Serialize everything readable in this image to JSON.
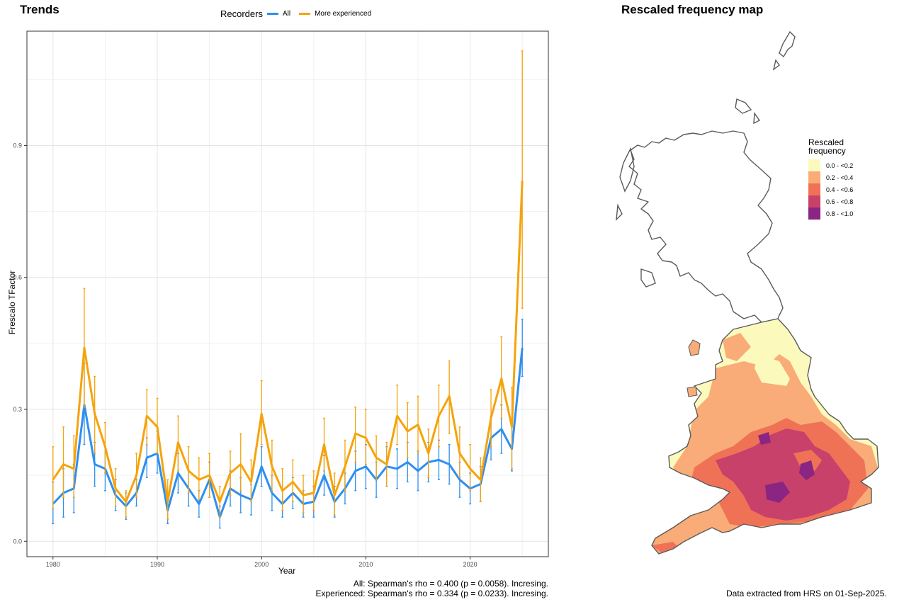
{
  "trends": {
    "title": "Trends",
    "legend_title": "Recorders",
    "ylabel": "Frescalo TFactor",
    "xlabel": "Year",
    "stat_all": "All: Spearman's rho = 0.400 (p = 0.0058). Incresing.",
    "stat_experienced": "Experienced: Spearman's rho = 0.334 (p = 0.0233). Incresing."
  },
  "chart_data": {
    "type": "line",
    "title": "Trends",
    "xlabel": "Year",
    "ylabel": "Frescalo TFactor",
    "xlim": [
      1977.5,
      2027.5
    ],
    "ylim": [
      -0.035,
      1.16
    ],
    "x_ticks": [
      1980,
      1990,
      2000,
      2010,
      2020
    ],
    "y_ticks": [
      0.0,
      0.3,
      0.6,
      0.9
    ],
    "y_tick_labels": [
      "0.0",
      "0.3",
      "0.6",
      "0.9"
    ],
    "grid": true,
    "legend_position": "top",
    "x": [
      1980,
      1981,
      1982,
      1983,
      1984,
      1985,
      1986,
      1987,
      1988,
      1989,
      1990,
      1991,
      1992,
      1993,
      1994,
      1995,
      1996,
      1997,
      1998,
      1999,
      2000,
      2001,
      2002,
      2003,
      2004,
      2005,
      2006,
      2007,
      2008,
      2009,
      2010,
      2011,
      2012,
      2013,
      2014,
      2015,
      2016,
      2017,
      2018,
      2019,
      2020,
      2021,
      2022,
      2023,
      2024,
      2025
    ],
    "series": [
      {
        "name": "All",
        "color": "#2d8ff0",
        "values": [
          0.085,
          0.11,
          0.12,
          0.31,
          0.175,
          0.165,
          0.105,
          0.08,
          0.11,
          0.19,
          0.2,
          0.07,
          0.155,
          0.12,
          0.085,
          0.14,
          0.055,
          0.12,
          0.105,
          0.095,
          0.17,
          0.11,
          0.085,
          0.11,
          0.085,
          0.09,
          0.15,
          0.09,
          0.12,
          0.16,
          0.17,
          0.14,
          0.17,
          0.165,
          0.18,
          0.16,
          0.18,
          0.185,
          0.175,
          0.14,
          0.12,
          0.13,
          0.235,
          0.255,
          0.21,
          0.44
        ],
        "lower": [
          0.04,
          0.055,
          0.065,
          0.22,
          0.125,
          0.115,
          0.07,
          0.05,
          0.08,
          0.145,
          0.155,
          0.04,
          0.11,
          0.08,
          0.055,
          0.1,
          0.03,
          0.08,
          0.065,
          0.06,
          0.125,
          0.07,
          0.055,
          0.075,
          0.055,
          0.055,
          0.105,
          0.055,
          0.085,
          0.115,
          0.12,
          0.1,
          0.125,
          0.12,
          0.135,
          0.115,
          0.135,
          0.14,
          0.13,
          0.1,
          0.085,
          0.09,
          0.185,
          0.2,
          0.16,
          0.375
        ],
        "upper": [
          0.135,
          0.165,
          0.175,
          0.405,
          0.225,
          0.215,
          0.14,
          0.11,
          0.14,
          0.235,
          0.25,
          0.1,
          0.2,
          0.16,
          0.115,
          0.18,
          0.08,
          0.16,
          0.145,
          0.13,
          0.215,
          0.15,
          0.115,
          0.145,
          0.115,
          0.125,
          0.195,
          0.125,
          0.155,
          0.205,
          0.22,
          0.18,
          0.215,
          0.21,
          0.225,
          0.205,
          0.225,
          0.23,
          0.22,
          0.18,
          0.155,
          0.17,
          0.285,
          0.31,
          0.26,
          0.505
        ]
      },
      {
        "name": "More experienced",
        "color": "#f5a30c",
        "values": [
          0.14,
          0.175,
          0.165,
          0.44,
          0.29,
          0.215,
          0.12,
          0.09,
          0.15,
          0.285,
          0.26,
          0.09,
          0.225,
          0.16,
          0.14,
          0.15,
          0.09,
          0.155,
          0.175,
          0.135,
          0.29,
          0.17,
          0.115,
          0.135,
          0.105,
          0.11,
          0.22,
          0.105,
          0.17,
          0.245,
          0.235,
          0.19,
          0.175,
          0.285,
          0.25,
          0.265,
          0.2,
          0.285,
          0.33,
          0.2,
          0.165,
          0.14,
          0.28,
          0.37,
          0.26,
          0.82
        ],
        "lower": [
          0.075,
          0.1,
          0.1,
          0.305,
          0.2,
          0.155,
          0.08,
          0.055,
          0.1,
          0.22,
          0.2,
          0.05,
          0.16,
          0.11,
          0.095,
          0.1,
          0.055,
          0.105,
          0.115,
          0.09,
          0.22,
          0.115,
          0.07,
          0.09,
          0.065,
          0.07,
          0.16,
          0.06,
          0.115,
          0.18,
          0.175,
          0.14,
          0.125,
          0.22,
          0.19,
          0.2,
          0.145,
          0.215,
          0.245,
          0.145,
          0.115,
          0.09,
          0.215,
          0.28,
          0.165,
          0.53
        ],
        "upper": [
          0.215,
          0.26,
          0.24,
          0.575,
          0.375,
          0.27,
          0.165,
          0.115,
          0.2,
          0.345,
          0.325,
          0.14,
          0.285,
          0.215,
          0.19,
          0.2,
          0.125,
          0.205,
          0.245,
          0.185,
          0.365,
          0.23,
          0.165,
          0.185,
          0.15,
          0.16,
          0.28,
          0.155,
          0.23,
          0.305,
          0.3,
          0.24,
          0.225,
          0.355,
          0.315,
          0.33,
          0.255,
          0.355,
          0.41,
          0.26,
          0.22,
          0.19,
          0.345,
          0.465,
          0.35,
          1.115
        ]
      }
    ]
  },
  "map": {
    "title": "Rescaled frequency map",
    "legend_title_line1": "Rescaled",
    "legend_title_line2": "frequency",
    "legend": [
      {
        "label": "0.0 - <0.2",
        "color": "#fcf9bd"
      },
      {
        "label": "0.2 - <0.4",
        "color": "#f9ac77"
      },
      {
        "label": "0.4 - <0.6",
        "color": "#f07256"
      },
      {
        "label": "0.6 - <0.8",
        "color": "#c7416b"
      },
      {
        "label": "0.8 - <1.0",
        "color": "#8a2583"
      }
    ],
    "caption": "Data extracted from HRS on 01-Sep-2025."
  }
}
